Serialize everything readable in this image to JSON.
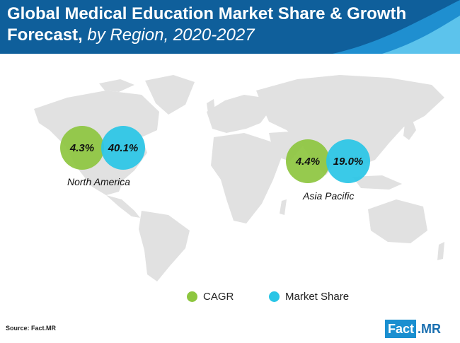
{
  "header": {
    "title_bold": "Global Medical Education Market Share & Growth Forecast,",
    "title_italic": "by Region, 2020-2027"
  },
  "chart_data": {
    "type": "bubble-map",
    "title": "Global Medical Education Market Share & Growth Forecast, by Region, 2020-2027",
    "series": [
      {
        "name": "CAGR",
        "color": "#8dc63f"
      },
      {
        "name": "Market Share",
        "color": "#29c5e6"
      }
    ],
    "regions": [
      {
        "name": "North America",
        "cagr": 4.3,
        "market_share": 40.1,
        "cagr_label": "4.3%",
        "market_share_label": "40.1%"
      },
      {
        "name": "Asia Pacific",
        "cagr": 4.4,
        "market_share": 19.0,
        "cagr_label": "4.4%",
        "market_share_label": "19.0%"
      }
    ],
    "legend_position": "bottom-center"
  },
  "legend": {
    "cagr_label": "CAGR",
    "share_label": "Market Share"
  },
  "footer": {
    "source": "Source: Fact.MR",
    "logo_fact": "Fact",
    "logo_mr": ".MR"
  },
  "colors": {
    "header": "#0f5f9b",
    "map": "#e1e1e1",
    "cagr": "#8dc63f",
    "share": "#29c5e6"
  }
}
